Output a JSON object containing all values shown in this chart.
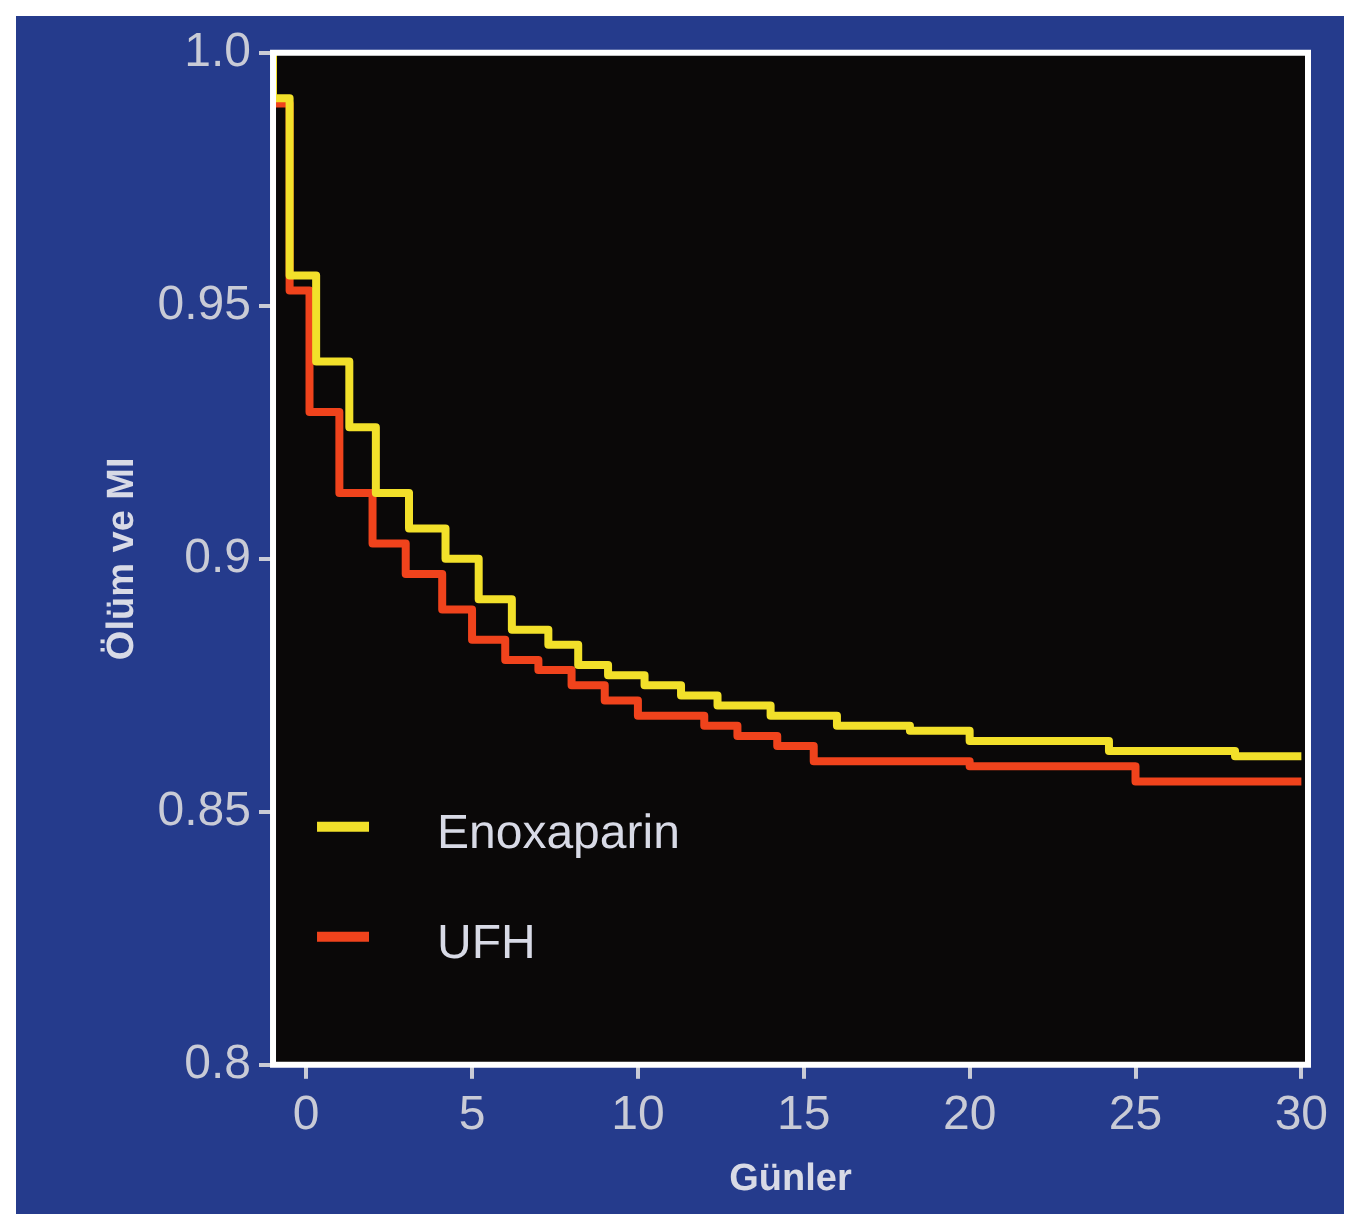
{
  "chart_data": {
    "type": "step",
    "xlabel": "Günler",
    "ylabel": "Ölüm ve MI",
    "xlim": [
      -1,
      30.2
    ],
    "ylim": [
      0.8,
      1.0
    ],
    "xticks": [
      0,
      5,
      10,
      15,
      20,
      25,
      30
    ],
    "yticks": [
      {
        "value": 0.8,
        "label": "0.8"
      },
      0.85,
      {
        "value": 0.9,
        "label": "0.9"
      },
      0.95,
      {
        "value": 1.0,
        "label": "1.0"
      }
    ],
    "grid": false,
    "legend": "bottom left",
    "marker": "none",
    "line_style": "solid",
    "series": [
      {
        "name": "Enoxaparin",
        "color": "#f2e02a",
        "x": [
          -1,
          -0.5,
          0.3,
          1.3,
          2.1,
          3.1,
          4.2,
          5.2,
          6.2,
          7.3,
          8.2,
          9.1,
          10.2,
          11.3,
          12.4,
          14,
          16,
          18.2,
          20,
          24.2,
          28,
          30
        ],
        "values": [
          1.0,
          0.991,
          0.956,
          0.939,
          0.926,
          0.913,
          0.906,
          0.9,
          0.892,
          0.886,
          0.883,
          0.879,
          0.877,
          0.875,
          0.873,
          0.871,
          0.869,
          0.867,
          0.866,
          0.864,
          0.862,
          0.861
        ]
      },
      {
        "name": "UFH",
        "color": "#f0431c",
        "x": [
          -1,
          -0.5,
          0.1,
          1,
          2,
          3,
          4.1,
          5,
          6,
          7,
          8,
          9,
          10,
          12,
          13,
          14.2,
          15.3,
          20,
          25,
          30
        ],
        "values": [
          1.0,
          0.99,
          0.953,
          0.929,
          0.913,
          0.903,
          0.897,
          0.89,
          0.884,
          0.88,
          0.878,
          0.875,
          0.872,
          0.869,
          0.867,
          0.865,
          0.863,
          0.86,
          0.859,
          0.856
        ]
      }
    ]
  }
}
